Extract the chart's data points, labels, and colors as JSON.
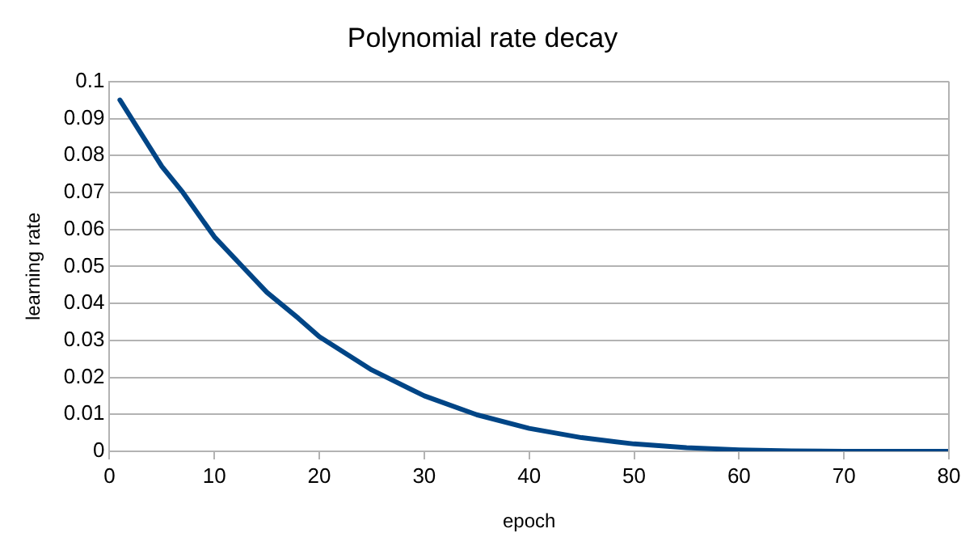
{
  "chart_data": {
    "type": "line",
    "title": "Polynomial rate decay",
    "xlabel": "epoch",
    "ylabel": "learning rate",
    "x": [
      1,
      3,
      5,
      7,
      10,
      13,
      15,
      18,
      20,
      25,
      30,
      35,
      40,
      45,
      50,
      55,
      60,
      65,
      70,
      75,
      80
    ],
    "series": [
      {
        "color": "#004586",
        "values": [
          0.095,
          0.086,
          0.077,
          0.07,
          0.058,
          0.049,
          0.043,
          0.036,
          0.031,
          0.022,
          0.015,
          0.0099,
          0.0062,
          0.0037,
          0.002,
          0.001,
          0.0004,
          0.0001,
          0.0,
          0.0,
          0.0
        ]
      }
    ],
    "xlim": [
      0,
      80
    ],
    "xticks": [
      0,
      10,
      20,
      30,
      40,
      50,
      60,
      70,
      80
    ],
    "ylim": [
      0,
      0.1
    ],
    "yticks": [
      0,
      0.01,
      0.02,
      0.03,
      0.04,
      0.05,
      0.06,
      0.07,
      0.08,
      0.09,
      0.1
    ],
    "grid": "y",
    "legend": false,
    "marker": "none",
    "line_style": "solid"
  }
}
